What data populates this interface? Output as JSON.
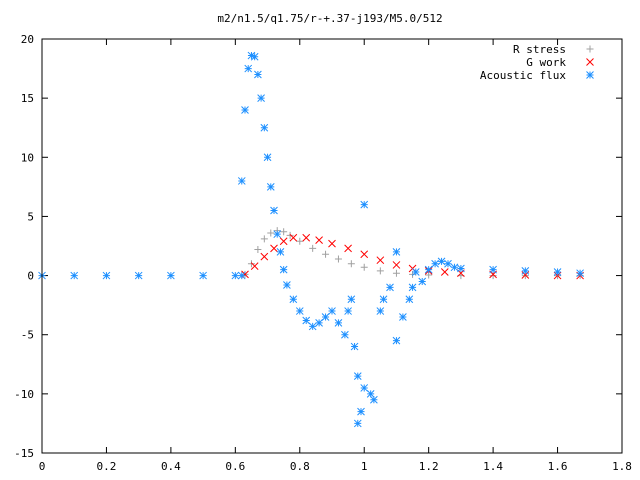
{
  "chart_data": {
    "type": "scatter",
    "title": "m2/n1.5/q1.75/r-+.37-j193/M5.0/512",
    "xlabel": "",
    "ylabel": "",
    "xlim": [
      0,
      1.8
    ],
    "ylim": [
      -15,
      20
    ],
    "xticks": [
      "0",
      "0.2",
      "0.4",
      "0.6",
      "0.8",
      "1",
      "1.2",
      "1.4",
      "1.6",
      "1.8"
    ],
    "yticks": [
      "-15",
      "-10",
      "-5",
      "0",
      "5",
      "10",
      "15",
      "20"
    ],
    "grid": false,
    "legend_position": "top-right",
    "series": [
      {
        "name": "R stress",
        "marker": "plus",
        "color": "#a0a0a0",
        "points": [
          [
            0.63,
            0.1
          ],
          [
            0.65,
            1.0
          ],
          [
            0.67,
            2.2
          ],
          [
            0.69,
            3.1
          ],
          [
            0.71,
            3.6
          ],
          [
            0.73,
            3.8
          ],
          [
            0.75,
            3.7
          ],
          [
            0.77,
            3.4
          ],
          [
            0.8,
            2.9
          ],
          [
            0.84,
            2.3
          ],
          [
            0.88,
            1.8
          ],
          [
            0.92,
            1.4
          ],
          [
            0.96,
            1.0
          ],
          [
            1.0,
            0.7
          ],
          [
            1.05,
            0.4
          ],
          [
            1.1,
            0.2
          ],
          [
            1.15,
            0.1
          ],
          [
            1.2,
            0.05
          ],
          [
            1.3,
            0.0
          ],
          [
            1.4,
            0.0
          ],
          [
            1.5,
            0.0
          ],
          [
            1.6,
            0.0
          ],
          [
            1.67,
            0.0
          ]
        ]
      },
      {
        "name": "G work",
        "marker": "cross",
        "color": "#ff0000",
        "points": [
          [
            0.63,
            0.1
          ],
          [
            0.66,
            0.8
          ],
          [
            0.69,
            1.6
          ],
          [
            0.72,
            2.3
          ],
          [
            0.75,
            2.9
          ],
          [
            0.78,
            3.2
          ],
          [
            0.82,
            3.2
          ],
          [
            0.86,
            3.0
          ],
          [
            0.9,
            2.7
          ],
          [
            0.95,
            2.3
          ],
          [
            1.0,
            1.8
          ],
          [
            1.05,
            1.3
          ],
          [
            1.1,
            0.9
          ],
          [
            1.15,
            0.6
          ],
          [
            1.2,
            0.4
          ],
          [
            1.25,
            0.3
          ],
          [
            1.3,
            0.2
          ],
          [
            1.4,
            0.1
          ],
          [
            1.5,
            0.05
          ],
          [
            1.6,
            0.0
          ],
          [
            1.67,
            0.0
          ]
        ]
      },
      {
        "name": "Acoustic flux",
        "marker": "star",
        "color": "#1e90ff",
        "points": [
          [
            0.0,
            0.0
          ],
          [
            0.1,
            0.0
          ],
          [
            0.2,
            0.0
          ],
          [
            0.3,
            0.0
          ],
          [
            0.4,
            0.0
          ],
          [
            0.5,
            0.0
          ],
          [
            0.6,
            0.0
          ],
          [
            0.62,
            0.0
          ],
          [
            0.62,
            8.0
          ],
          [
            0.63,
            14.0
          ],
          [
            0.64,
            17.5
          ],
          [
            0.65,
            18.6
          ],
          [
            0.66,
            18.5
          ],
          [
            0.67,
            17.0
          ],
          [
            0.68,
            15.0
          ],
          [
            0.69,
            12.5
          ],
          [
            0.7,
            10.0
          ],
          [
            0.71,
            7.5
          ],
          [
            0.72,
            5.5
          ],
          [
            0.73,
            3.5
          ],
          [
            0.74,
            2.0
          ],
          [
            0.75,
            0.5
          ],
          [
            0.76,
            -0.8
          ],
          [
            0.78,
            -2.0
          ],
          [
            0.8,
            -3.0
          ],
          [
            0.82,
            -3.8
          ],
          [
            0.84,
            -4.3
          ],
          [
            0.86,
            -4.0
          ],
          [
            0.88,
            -3.5
          ],
          [
            0.9,
            -3.0
          ],
          [
            0.92,
            -4.0
          ],
          [
            0.94,
            -5.0
          ],
          [
            0.95,
            -3.0
          ],
          [
            0.96,
            -2.0
          ],
          [
            0.97,
            -6.0
          ],
          [
            0.98,
            -8.5
          ],
          [
            0.98,
            -12.5
          ],
          [
            0.99,
            -11.5
          ],
          [
            1.0,
            -9.5
          ],
          [
            1.0,
            6.0
          ],
          [
            1.02,
            -10.0
          ],
          [
            1.03,
            -10.5
          ],
          [
            1.05,
            -3.0
          ],
          [
            1.06,
            -2.0
          ],
          [
            1.08,
            -1.0
          ],
          [
            1.1,
            -5.5
          ],
          [
            1.1,
            2.0
          ],
          [
            1.12,
            -3.5
          ],
          [
            1.14,
            -2.0
          ],
          [
            1.15,
            -1.0
          ],
          [
            1.16,
            0.3
          ],
          [
            1.18,
            -0.5
          ],
          [
            1.2,
            0.5
          ],
          [
            1.22,
            1.0
          ],
          [
            1.24,
            1.2
          ],
          [
            1.26,
            1.0
          ],
          [
            1.28,
            0.7
          ],
          [
            1.3,
            0.6
          ],
          [
            1.4,
            0.5
          ],
          [
            1.5,
            0.4
          ],
          [
            1.6,
            0.3
          ],
          [
            1.67,
            0.2
          ]
        ]
      }
    ]
  }
}
